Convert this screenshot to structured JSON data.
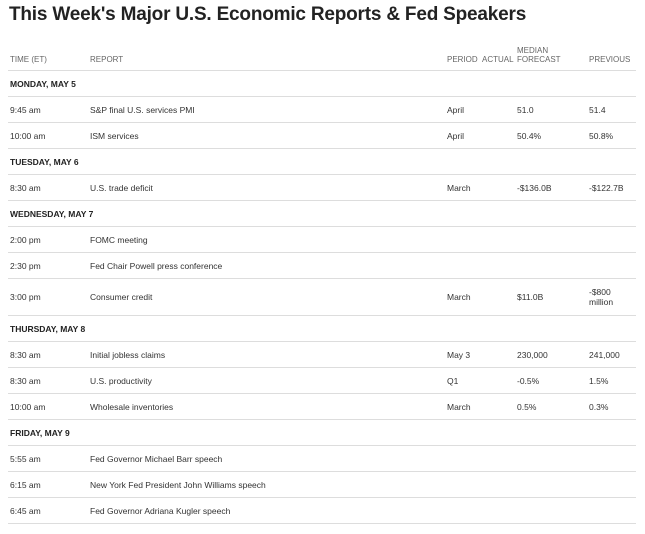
{
  "title": "This Week's Major U.S. Economic Reports & Fed Speakers",
  "columns": {
    "time": "TIME (ET)",
    "report": "REPORT",
    "period": "PERIOD",
    "actual": "ACTUAL",
    "forecast_top": "MEDIAN",
    "forecast": "FORECAST",
    "previous": "PREVIOUS"
  },
  "days": [
    {
      "label": "MONDAY, MAY 5",
      "rows": [
        {
          "time": "9:45 am",
          "report": "S&P final U.S. services PMI",
          "period": "April",
          "actual": "",
          "forecast": "51.0",
          "previous": "51.4"
        },
        {
          "time": "10:00 am",
          "report": "ISM services",
          "period": "April",
          "actual": "",
          "forecast": "50.4%",
          "previous": "50.8%"
        }
      ]
    },
    {
      "label": "TUESDAY, MAY 6",
      "rows": [
        {
          "time": "8:30 am",
          "report": "U.S. trade deficit",
          "period": "March",
          "actual": "",
          "forecast": "-$136.0B",
          "previous": "-$122.7B"
        }
      ]
    },
    {
      "label": "WEDNESDAY, MAY 7",
      "rows": [
        {
          "time": "2:00 pm",
          "report": "FOMC meeting",
          "period": "",
          "actual": "",
          "forecast": "",
          "previous": ""
        },
        {
          "time": "2:30 pm",
          "report": "Fed Chair Powell press conference",
          "period": "",
          "actual": "",
          "forecast": "",
          "previous": ""
        },
        {
          "time": "3:00 pm",
          "report": "Consumer credit",
          "period": "March",
          "actual": "",
          "forecast": "$11.0B",
          "previous": "-$800 million"
        }
      ]
    },
    {
      "label": "THURSDAY, MAY 8",
      "rows": [
        {
          "time": "8:30 am",
          "report": "Initial jobless claims",
          "period": "May 3",
          "actual": "",
          "forecast": "230,000",
          "previous": "241,000"
        },
        {
          "time": "8:30 am",
          "report": "U.S. productivity",
          "period": "Q1",
          "actual": "",
          "forecast": "-0.5%",
          "previous": "1.5%"
        },
        {
          "time": "10:00 am",
          "report": "Wholesale inventories",
          "period": "March",
          "actual": "",
          "forecast": "0.5%",
          "previous": "0.3%"
        }
      ]
    },
    {
      "label": "FRIDAY, MAY 9",
      "rows": [
        {
          "time": "5:55 am",
          "report": "Fed Governor Michael Barr speech",
          "period": "",
          "actual": "",
          "forecast": "",
          "previous": ""
        },
        {
          "time": "6:15 am",
          "report": "New York Fed President John Williams speech",
          "period": "",
          "actual": "",
          "forecast": "",
          "previous": ""
        },
        {
          "time": "6:45 am",
          "report": "Fed Governor Adriana Kugler speech",
          "period": "",
          "actual": "",
          "forecast": "",
          "previous": ""
        }
      ]
    }
  ]
}
